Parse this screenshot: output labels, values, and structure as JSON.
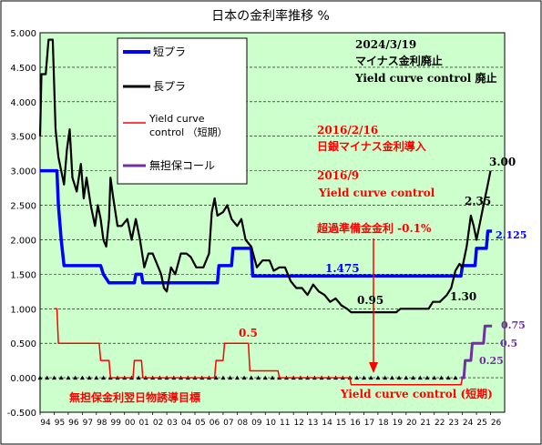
{
  "chart_data": {
    "type": "line",
    "title": "日本の金利率推移 %",
    "ylim": [
      -0.5,
      5.0
    ],
    "y_ticks": [
      "5.000",
      "4.500",
      "4.000",
      "3.500",
      "3.000",
      "2.500",
      "2.000",
      "1.500",
      "1.000",
      "0.500",
      "0.000",
      "-0.500"
    ],
    "x_range": [
      1994,
      2027
    ],
    "x_ticks": [
      "94",
      "95",
      "96",
      "97",
      "98",
      "99",
      "00",
      "01",
      "02",
      "03",
      "04",
      "05",
      "06",
      "07",
      "08",
      "09",
      "10",
      "11",
      "12",
      "13",
      "14",
      "15",
      "16",
      "17",
      "18",
      "19",
      "20",
      "21",
      "22",
      "23",
      "24",
      "25",
      "26"
    ],
    "grid": true,
    "legend_position": "top-left",
    "series": [
      {
        "name": "短プラ",
        "color": "#0000ff",
        "points": [
          [
            1994.0,
            3.0
          ],
          [
            1995.2,
            3.0
          ],
          [
            1995.3,
            2.5
          ],
          [
            1995.5,
            2.0
          ],
          [
            1995.7,
            1.625
          ],
          [
            1998.3,
            1.625
          ],
          [
            1998.5,
            1.5
          ],
          [
            1998.9,
            1.375
          ],
          [
            2000.7,
            1.375
          ],
          [
            2000.8,
            1.5
          ],
          [
            2001.2,
            1.5
          ],
          [
            2001.3,
            1.375
          ],
          [
            2006.6,
            1.375
          ],
          [
            2006.7,
            1.625
          ],
          [
            2007.6,
            1.625
          ],
          [
            2007.7,
            1.875
          ],
          [
            2009.0,
            1.875
          ],
          [
            2009.1,
            1.475
          ],
          [
            2023.9,
            1.475
          ],
          [
            2024.0,
            1.625
          ],
          [
            2024.9,
            1.625
          ],
          [
            2025.0,
            1.875
          ],
          [
            2025.7,
            1.875
          ],
          [
            2025.8,
            2.125
          ],
          [
            2026.1,
            2.125
          ]
        ]
      },
      {
        "name": "長プラ",
        "color": "#000000",
        "points": [
          [
            1994.0,
            3.5
          ],
          [
            1994.1,
            4.4
          ],
          [
            1994.4,
            4.4
          ],
          [
            1994.6,
            4.9
          ],
          [
            1994.9,
            4.9
          ],
          [
            1995.1,
            3.6
          ],
          [
            1995.3,
            3.2
          ],
          [
            1995.5,
            3.0
          ],
          [
            1995.7,
            2.8
          ],
          [
            1995.9,
            3.3
          ],
          [
            1996.1,
            3.6
          ],
          [
            1996.3,
            2.9
          ],
          [
            1996.6,
            2.7
          ],
          [
            1996.9,
            3.1
          ],
          [
            1997.1,
            2.6
          ],
          [
            1997.3,
            2.9
          ],
          [
            1997.6,
            2.5
          ],
          [
            1997.9,
            2.2
          ],
          [
            1998.1,
            2.5
          ],
          [
            1998.3,
            2.3
          ],
          [
            1998.5,
            2.0
          ],
          [
            1998.7,
            1.9
          ],
          [
            1998.9,
            2.3
          ],
          [
            1999.0,
            2.9
          ],
          [
            1999.2,
            2.6
          ],
          [
            1999.5,
            2.2
          ],
          [
            1999.8,
            2.2
          ],
          [
            2000.2,
            2.3
          ],
          [
            2000.5,
            2.0
          ],
          [
            2000.8,
            2.3
          ],
          [
            2001.1,
            2.0
          ],
          [
            2001.4,
            1.6
          ],
          [
            2001.7,
            1.8
          ],
          [
            2002.0,
            1.8
          ],
          [
            2002.3,
            1.65
          ],
          [
            2002.6,
            1.5
          ],
          [
            2002.8,
            1.3
          ],
          [
            2003.0,
            1.25
          ],
          [
            2003.3,
            1.6
          ],
          [
            2003.6,
            1.5
          ],
          [
            2004.0,
            1.8
          ],
          [
            2004.4,
            1.8
          ],
          [
            2004.7,
            1.75
          ],
          [
            2005.1,
            1.6
          ],
          [
            2005.6,
            1.6
          ],
          [
            2006.0,
            1.8
          ],
          [
            2006.2,
            2.4
          ],
          [
            2006.4,
            2.6
          ],
          [
            2006.6,
            2.35
          ],
          [
            2007.0,
            2.4
          ],
          [
            2007.3,
            2.5
          ],
          [
            2007.6,
            2.3
          ],
          [
            2008.0,
            2.2
          ],
          [
            2008.3,
            2.3
          ],
          [
            2008.6,
            2.0
          ],
          [
            2009.0,
            1.9
          ],
          [
            2009.4,
            1.6
          ],
          [
            2009.8,
            1.7
          ],
          [
            2010.3,
            1.7
          ],
          [
            2010.6,
            1.55
          ],
          [
            2011.0,
            1.6
          ],
          [
            2011.4,
            1.6
          ],
          [
            2011.8,
            1.4
          ],
          [
            2012.2,
            1.3
          ],
          [
            2012.6,
            1.3
          ],
          [
            2013.0,
            1.2
          ],
          [
            2013.4,
            1.35
          ],
          [
            2013.8,
            1.25
          ],
          [
            2014.2,
            1.2
          ],
          [
            2014.6,
            1.1
          ],
          [
            2015.0,
            1.15
          ],
          [
            2015.4,
            1.05
          ],
          [
            2015.8,
            1.0
          ],
          [
            2016.1,
            0.95
          ],
          [
            2016.4,
            0.95
          ],
          [
            2019.3,
            0.95
          ],
          [
            2019.6,
            1.0
          ],
          [
            2021.6,
            1.0
          ],
          [
            2021.9,
            1.1
          ],
          [
            2022.4,
            1.1
          ],
          [
            2022.9,
            1.2
          ],
          [
            2023.2,
            1.3
          ],
          [
            2023.5,
            1.55
          ],
          [
            2023.8,
            1.65
          ],
          [
            2024.0,
            1.6
          ],
          [
            2024.3,
            1.9
          ],
          [
            2024.6,
            2.35
          ],
          [
            2024.8,
            2.2
          ],
          [
            2025.0,
            2.0
          ],
          [
            2025.2,
            2.2
          ],
          [
            2025.5,
            2.5
          ],
          [
            2025.8,
            2.8
          ],
          [
            2026.0,
            3.0
          ]
        ]
      },
      {
        "name": "Yield curve control （短期）",
        "color": "#ff0000",
        "points": [
          [
            1995.0,
            1.0
          ],
          [
            1995.2,
            1.0
          ],
          [
            1995.3,
            0.5
          ],
          [
            1998.2,
            0.5
          ],
          [
            1998.3,
            0.25
          ],
          [
            1998.9,
            0.25
          ],
          [
            1999.0,
            0.0
          ],
          [
            2000.6,
            0.0
          ],
          [
            2000.7,
            0.25
          ],
          [
            2001.2,
            0.25
          ],
          [
            2001.3,
            0.0
          ],
          [
            2006.4,
            0.0
          ],
          [
            2006.5,
            0.25
          ],
          [
            2007.0,
            0.25
          ],
          [
            2007.1,
            0.5
          ],
          [
            2008.8,
            0.5
          ],
          [
            2008.9,
            0.1
          ],
          [
            2010.9,
            0.1
          ],
          [
            2011.0,
            0.0
          ],
          [
            2016.0,
            0.0
          ],
          [
            2016.1,
            -0.1
          ],
          [
            2023.9,
            -0.1
          ],
          [
            2024.0,
            0.0
          ]
        ]
      },
      {
        "name": "無担保コール",
        "color": "#7030a0",
        "points": [
          [
            2023.9,
            0.0
          ],
          [
            2024.1,
            0.0
          ],
          [
            2024.2,
            0.25
          ],
          [
            2024.6,
            0.25
          ],
          [
            2024.7,
            0.5
          ],
          [
            2025.5,
            0.5
          ],
          [
            2025.6,
            0.75
          ],
          [
            2026.1,
            0.75
          ]
        ]
      }
    ],
    "zero_markers_range": [
      1994.0,
      2023.9
    ],
    "annotations": {
      "top_right": [
        "2024/3/19",
        "マイナス金利廃止",
        "Yield curve control 廃止"
      ],
      "boj_negative": [
        "2016/2/16",
        "日銀マイナス金利導入"
      ],
      "ycc_start": [
        "2016/9",
        "Yield curve control"
      ],
      "excess_reserve": "超過準備金金利 -0.1%",
      "ycc_short": "Yield curve control (短期)",
      "overnight_target": "無担保金利翌日物誘導目標",
      "v_3_00": "3.00",
      "v_2_35": "2.35",
      "v_2_125": "2.125",
      "v_1_475": "1.475",
      "v_1_30": "1.30",
      "v_0_95": "0.95",
      "v_0_5": "0.5",
      "v_0_75": "0.75",
      "v_0_5b": "0.5",
      "v_0_25": "0.25"
    }
  }
}
